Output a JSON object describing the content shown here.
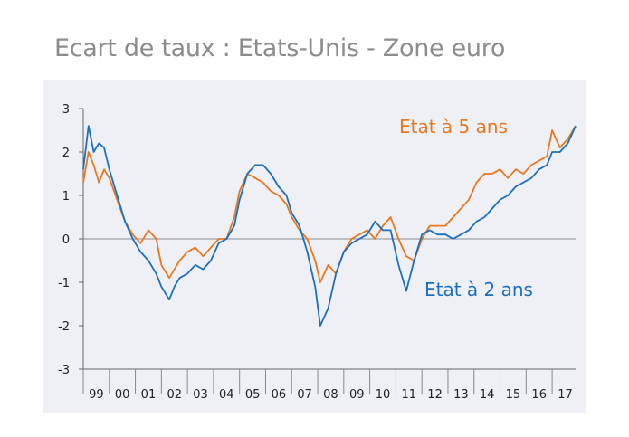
{
  "title": "Ecart de taux : Etats-Unis - Zone euro",
  "colors": {
    "orange": "#e8771e",
    "blue": "#1c6fbd",
    "panel": "#eef0f6"
  },
  "chart_data": {
    "type": "line",
    "title": "Ecart de taux : Etats-Unis - Zone euro",
    "xlabel": "",
    "ylabel": "",
    "ylim": [
      -3,
      3
    ],
    "yticks": [
      "3",
      "2",
      "1",
      "0",
      "-1",
      "-2",
      "-3"
    ],
    "xlim": [
      1999,
      2017.9
    ],
    "xticks": [
      "99",
      "00",
      "01",
      "02",
      "03",
      "04",
      "05",
      "06",
      "07",
      "08",
      "09",
      "10",
      "11",
      "12",
      "13",
      "14",
      "15",
      "16",
      "17"
    ],
    "grid": false,
    "legend": "inline",
    "series": [
      {
        "name": "Etat à 5 ans",
        "color": "#e8771e",
        "x": [
          1999.0,
          1999.2,
          1999.4,
          1999.6,
          1999.8,
          2000.0,
          2000.3,
          2000.6,
          2000.9,
          2001.2,
          2001.5,
          2001.8,
          2002.0,
          2002.3,
          2002.5,
          2002.7,
          2003.0,
          2003.3,
          2003.6,
          2003.9,
          2004.2,
          2004.5,
          2004.8,
          2005.0,
          2005.3,
          2005.6,
          2005.9,
          2006.2,
          2006.5,
          2006.8,
          2007.0,
          2007.3,
          2007.6,
          2007.9,
          2008.1,
          2008.4,
          2008.7,
          2009.0,
          2009.3,
          2009.6,
          2009.9,
          2010.2,
          2010.5,
          2010.8,
          2011.1,
          2011.4,
          2011.7,
          2012.0,
          2012.3,
          2012.6,
          2012.9,
          2013.2,
          2013.5,
          2013.8,
          2014.1,
          2014.4,
          2014.7,
          2015.0,
          2015.3,
          2015.6,
          2015.9,
          2016.2,
          2016.5,
          2016.8,
          2017.0,
          2017.3,
          2017.6,
          2017.9
        ],
        "y": [
          1.3,
          2.0,
          1.7,
          1.3,
          1.6,
          1.4,
          0.9,
          0.4,
          0.1,
          -0.1,
          0.2,
          0.0,
          -0.6,
          -0.9,
          -0.7,
          -0.5,
          -0.3,
          -0.2,
          -0.4,
          -0.2,
          0.0,
          0.0,
          0.5,
          1.1,
          1.5,
          1.4,
          1.3,
          1.1,
          1.0,
          0.8,
          0.5,
          0.2,
          0.0,
          -0.5,
          -1.0,
          -0.6,
          -0.8,
          -0.3,
          0.0,
          0.1,
          0.2,
          0.0,
          0.3,
          0.5,
          0.0,
          -0.4,
          -0.5,
          0.0,
          0.3,
          0.3,
          0.3,
          0.5,
          0.7,
          0.9,
          1.3,
          1.5,
          1.5,
          1.6,
          1.4,
          1.6,
          1.5,
          1.7,
          1.8,
          1.9,
          2.5,
          2.1,
          2.3,
          2.6
        ]
      },
      {
        "name": "Etat à 2 ans",
        "color": "#1c6fbd",
        "x": [
          1999.0,
          1999.2,
          1999.4,
          1999.6,
          1999.8,
          2000.0,
          2000.3,
          2000.6,
          2000.9,
          2001.2,
          2001.5,
          2001.8,
          2002.0,
          2002.3,
          2002.5,
          2002.7,
          2003.0,
          2003.3,
          2003.6,
          2003.9,
          2004.2,
          2004.5,
          2004.8,
          2005.0,
          2005.3,
          2005.6,
          2005.9,
          2006.2,
          2006.5,
          2006.8,
          2007.0,
          2007.3,
          2007.6,
          2007.9,
          2008.1,
          2008.4,
          2008.7,
          2009.0,
          2009.3,
          2009.6,
          2009.9,
          2010.2,
          2010.5,
          2010.8,
          2011.1,
          2011.4,
          2011.7,
          2012.0,
          2012.3,
          2012.6,
          2012.9,
          2013.2,
          2013.5,
          2013.8,
          2014.1,
          2014.4,
          2014.7,
          2015.0,
          2015.3,
          2015.6,
          2015.9,
          2016.2,
          2016.5,
          2016.8,
          2017.0,
          2017.3,
          2017.6,
          2017.9
        ],
        "y": [
          1.6,
          2.6,
          2.0,
          2.2,
          2.1,
          1.6,
          1.0,
          0.4,
          0.0,
          -0.3,
          -0.5,
          -0.8,
          -1.1,
          -1.4,
          -1.1,
          -0.9,
          -0.8,
          -0.6,
          -0.7,
          -0.5,
          -0.1,
          0.0,
          0.3,
          0.9,
          1.5,
          1.7,
          1.7,
          1.5,
          1.2,
          1.0,
          0.6,
          0.3,
          -0.3,
          -1.1,
          -2.0,
          -1.6,
          -0.8,
          -0.3,
          -0.1,
          0.0,
          0.1,
          0.4,
          0.2,
          0.2,
          -0.6,
          -1.2,
          -0.5,
          0.1,
          0.2,
          0.1,
          0.1,
          0.0,
          0.1,
          0.2,
          0.4,
          0.5,
          0.7,
          0.9,
          1.0,
          1.2,
          1.3,
          1.4,
          1.6,
          1.7,
          2.0,
          2.0,
          2.2,
          2.6
        ]
      }
    ]
  }
}
